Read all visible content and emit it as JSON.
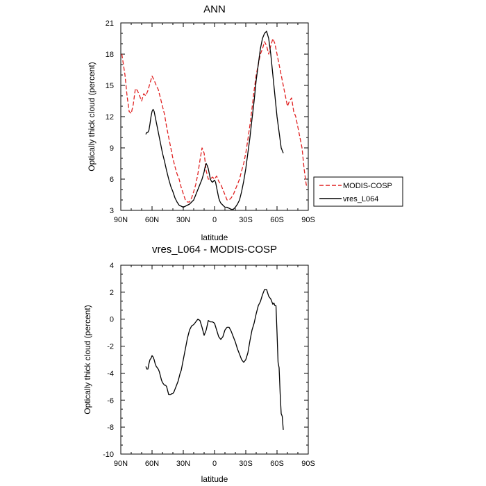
{
  "chart_data": [
    {
      "type": "line",
      "title": "ANN",
      "xlabel": "latitude",
      "ylabel": "Optically thick cloud (percent)",
      "xlim": [
        90,
        -90
      ],
      "ylim": [
        3,
        21
      ],
      "xticks": [
        90,
        60,
        30,
        0,
        -30,
        -60,
        -90
      ],
      "xtick_labels": [
        "90N",
        "60N",
        "30N",
        "0",
        "30S",
        "60S",
        "90S"
      ],
      "yticks": [
        3,
        6,
        9,
        12,
        15,
        18,
        21
      ],
      "ytick_labels": [
        "3",
        "6",
        "9",
        "12",
        "15",
        "18",
        "21"
      ],
      "legend_position": "right",
      "series": [
        {
          "name": "MODIS-COSP",
          "color": "#e02020",
          "dash": "dashed",
          "x": [
            89,
            86,
            84,
            82,
            80,
            78,
            76,
            74,
            72,
            70,
            68,
            66,
            64,
            62,
            60,
            58,
            56,
            54,
            52,
            50,
            48,
            46,
            44,
            42,
            40,
            38,
            36,
            34,
            32,
            30,
            28,
            26,
            24,
            22,
            20,
            18,
            16,
            14,
            12,
            10,
            8,
            6,
            4,
            2,
            0,
            -2,
            -4,
            -6,
            -8,
            -10,
            -12,
            -14,
            -16,
            -18,
            -20,
            -22,
            -24,
            -26,
            -28,
            -30,
            -32,
            -34,
            -36,
            -38,
            -40,
            -42,
            -44,
            -46,
            -48,
            -50,
            -52,
            -54,
            -56,
            -58,
            -60,
            -62,
            -64,
            -66,
            -68,
            -70,
            -72,
            -74,
            -76,
            -78,
            -80,
            -82,
            -84,
            -86,
            -88,
            -89
          ],
          "y": [
            18.0,
            16.0,
            14.0,
            12.5,
            12.3,
            13.2,
            14.7,
            14.5,
            14.0,
            13.5,
            14.2,
            14.0,
            14.5,
            15.2,
            15.9,
            15.5,
            15.0,
            14.6,
            13.8,
            13.0,
            12.2,
            11.0,
            10.0,
            9.0,
            8.0,
            7.2,
            6.5,
            6.0,
            5.2,
            4.6,
            4.0,
            3.8,
            3.8,
            4.2,
            4.8,
            5.5,
            6.5,
            7.8,
            9.0,
            8.5,
            6.8,
            6.0,
            6.0,
            6.2,
            6.0,
            6.3,
            5.8,
            5.5,
            5.0,
            4.5,
            4.0,
            4.0,
            4.2,
            4.5,
            5.0,
            5.5,
            6.0,
            6.8,
            7.5,
            8.5,
            9.8,
            11.2,
            12.8,
            14.5,
            16.0,
            17.0,
            18.0,
            18.5,
            19.2,
            18.8,
            18.0,
            18.8,
            19.5,
            19.0,
            18.0,
            17.0,
            16.0,
            15.0,
            14.0,
            13.0,
            13.5,
            13.8,
            12.5,
            12.0,
            11.0,
            10.0,
            9.0,
            7.0,
            5.5,
            5.2
          ]
        },
        {
          "name": "vres_L064",
          "color": "#000000",
          "dash": "solid",
          "x": [
            66,
            65,
            64,
            63,
            62,
            61,
            60,
            59,
            58,
            57,
            56,
            55,
            54,
            52,
            50,
            48,
            46,
            44,
            42,
            40,
            38,
            36,
            34,
            32,
            30,
            28,
            26,
            24,
            22,
            20,
            18,
            16,
            14,
            12,
            10,
            9,
            8,
            7,
            6,
            5,
            4,
            3,
            2,
            1,
            0,
            -1,
            -2,
            -3,
            -4,
            -5,
            -6,
            -8,
            -10,
            -12,
            -14,
            -16,
            -18,
            -20,
            -22,
            -24,
            -26,
            -28,
            -30,
            -32,
            -34,
            -36,
            -38,
            -40,
            -42,
            -44,
            -46,
            -48,
            -50,
            -52,
            -54,
            -56,
            -58,
            -60,
            -62,
            -64,
            -66
          ],
          "y": [
            10.3,
            10.5,
            10.5,
            10.7,
            11.3,
            12.0,
            12.5,
            12.7,
            12.5,
            12.0,
            11.5,
            11.0,
            10.5,
            9.5,
            8.5,
            7.7,
            6.8,
            6.0,
            5.3,
            4.8,
            4.2,
            3.8,
            3.5,
            3.4,
            3.3,
            3.4,
            3.5,
            3.6,
            3.8,
            4.0,
            4.5,
            5.0,
            5.5,
            6.0,
            6.7,
            7.2,
            7.5,
            7.3,
            7.0,
            6.5,
            6.0,
            5.8,
            5.7,
            5.8,
            5.9,
            5.7,
            5.2,
            4.7,
            4.2,
            3.9,
            3.7,
            3.5,
            3.3,
            3.3,
            3.2,
            3.1,
            3.1,
            3.3,
            3.6,
            4.0,
            4.8,
            5.8,
            7.0,
            8.5,
            10.0,
            11.8,
            13.5,
            15.5,
            17.0,
            18.5,
            19.5,
            20.0,
            20.2,
            19.5,
            18.0,
            16.0,
            14.0,
            12.0,
            10.5,
            9.0,
            8.5
          ]
        }
      ]
    },
    {
      "type": "line",
      "title": "vres_L064 - MODIS-COSP",
      "xlabel": "latitude",
      "ylabel": "Optically thick cloud (percent)",
      "xlim": [
        90,
        -90
      ],
      "ylim": [
        -10,
        4
      ],
      "xticks": [
        90,
        60,
        30,
        0,
        -30,
        -60,
        -90
      ],
      "xtick_labels": [
        "90N",
        "60N",
        "30N",
        "0",
        "30S",
        "60S",
        "90S"
      ],
      "yticks": [
        -10,
        -8,
        -6,
        -4,
        -2,
        0,
        2,
        4
      ],
      "ytick_labels": [
        "-10",
        "-8",
        "-6",
        "-4",
        "-2",
        "0",
        "2",
        "4"
      ],
      "series": [
        {
          "color": "#000000",
          "dash": "solid",
          "x": [
            66,
            65,
            64,
            63,
            62,
            61,
            60,
            59,
            58,
            57,
            56,
            55,
            54,
            53,
            52,
            51,
            50,
            49,
            48,
            47,
            46,
            45,
            44,
            43,
            42,
            41,
            40,
            39,
            38,
            37,
            36,
            35,
            34,
            33,
            32,
            30,
            28,
            26,
            24,
            22,
            20,
            18,
            16,
            14,
            12,
            10,
            8,
            6,
            4,
            2,
            0,
            -2,
            -4,
            -6,
            -8,
            -10,
            -12,
            -14,
            -16,
            -18,
            -20,
            -22,
            -24,
            -26,
            -28,
            -30,
            -32,
            -34,
            -36,
            -38,
            -40,
            -42,
            -44,
            -46,
            -48,
            -50,
            -52,
            -54,
            -55,
            -56,
            -57,
            -58,
            -59,
            -60,
            -61,
            -62,
            -63,
            -64,
            -65,
            -66
          ],
          "y": [
            -3.5,
            -3.7,
            -3.7,
            -3.3,
            -3.0,
            -2.9,
            -2.7,
            -2.8,
            -3.0,
            -3.3,
            -3.5,
            -3.6,
            -3.7,
            -3.9,
            -4.2,
            -4.5,
            -4.7,
            -4.8,
            -4.9,
            -4.9,
            -5.0,
            -5.3,
            -5.6,
            -5.6,
            -5.6,
            -5.5,
            -5.5,
            -5.4,
            -5.2,
            -5.0,
            -4.8,
            -4.6,
            -4.3,
            -4.0,
            -3.8,
            -3.0,
            -2.2,
            -1.4,
            -0.8,
            -0.5,
            -0.4,
            -0.2,
            0.0,
            -0.1,
            -0.6,
            -1.2,
            -0.8,
            -0.1,
            -0.2,
            -0.2,
            -0.3,
            -0.8,
            -1.3,
            -1.5,
            -1.3,
            -0.8,
            -0.6,
            -0.6,
            -0.9,
            -1.3,
            -1.7,
            -2.2,
            -2.6,
            -3.0,
            -3.2,
            -3.0,
            -2.5,
            -1.6,
            -0.8,
            -0.3,
            0.4,
            1.0,
            1.3,
            1.8,
            2.2,
            2.2,
            1.7,
            1.5,
            1.3,
            1.1,
            1.2,
            1.0,
            1.0,
            -1.0,
            -3.2,
            -3.6,
            -5.5,
            -7.0,
            -7.2,
            -8.2
          ]
        }
      ]
    }
  ],
  "legend": {
    "items": [
      {
        "label": "MODIS-COSP",
        "color": "#e02020",
        "dash": "dashed"
      },
      {
        "label": "vres_L064",
        "color": "#000000",
        "dash": "solid"
      }
    ]
  }
}
